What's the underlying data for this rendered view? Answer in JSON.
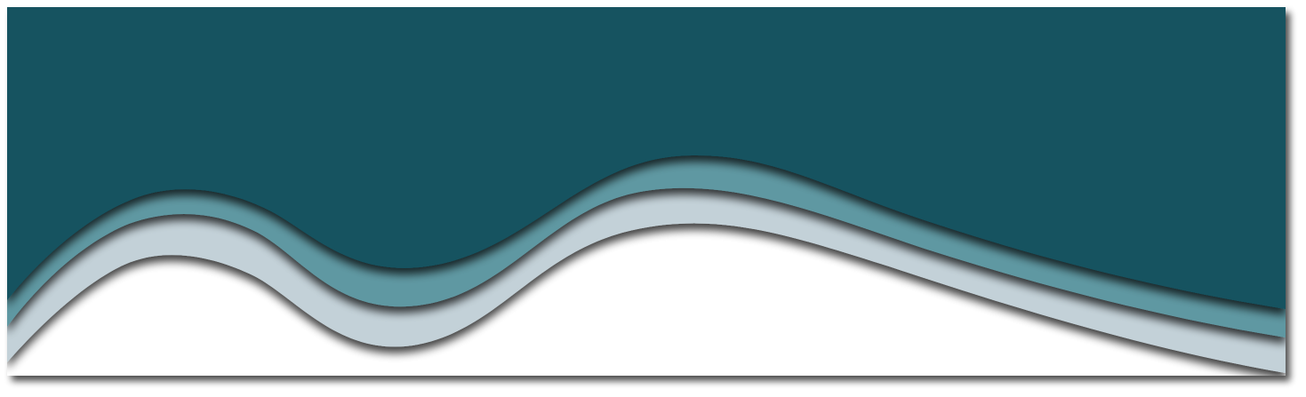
{
  "banner": {
    "colors": {
      "background": "#ffffff",
      "frame_shadow": "#9a9a9a",
      "light_wave": "#c3d1d8",
      "mid_wave": "#5e98a2",
      "dark_wave": "#125260",
      "wave_shadow": "#000000"
    },
    "layers": [
      {
        "name": "light-wave",
        "color_key": "light_wave"
      },
      {
        "name": "mid-wave",
        "color_key": "mid_wave"
      },
      {
        "name": "dark-wave",
        "color_key": "dark_wave"
      }
    ]
  }
}
